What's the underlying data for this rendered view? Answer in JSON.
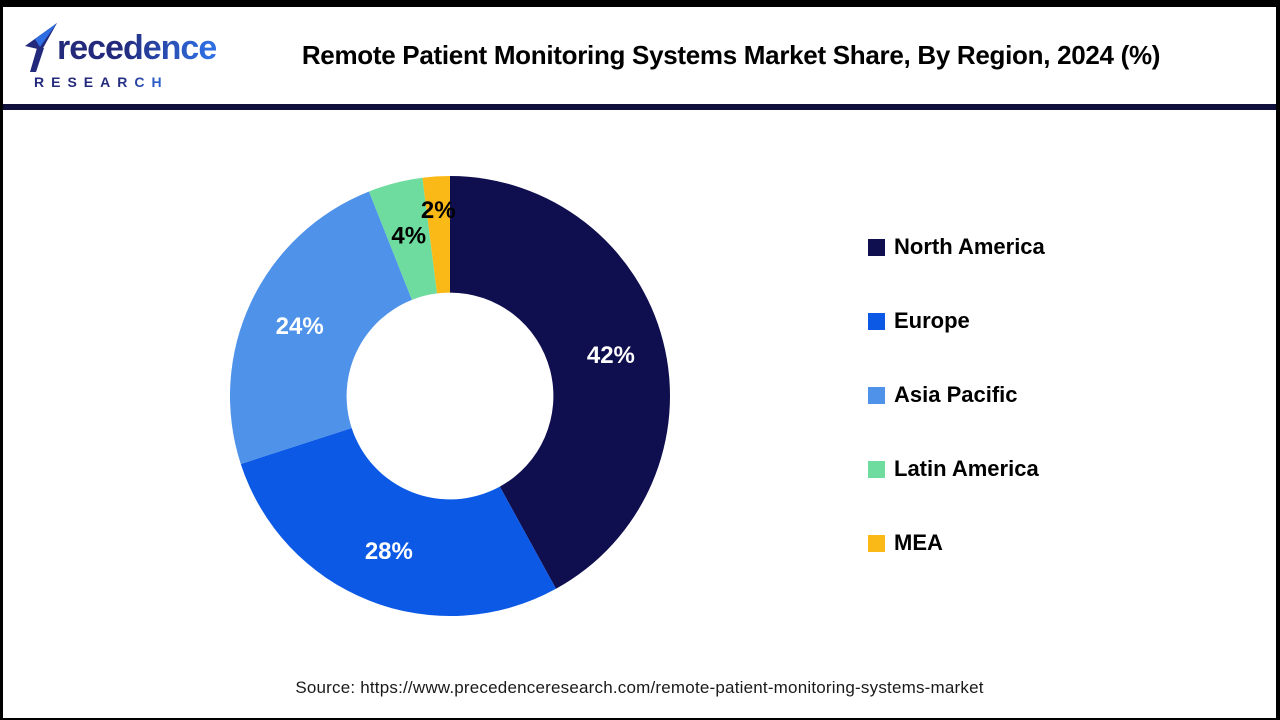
{
  "header": {
    "logo": {
      "wordmark": "Precedence",
      "sub": "RESEARCH",
      "brand_navy": "#232a7c",
      "brand_blue": "#2e6de2"
    },
    "title": "Remote Patient Monitoring Systems Market Share, By Region, 2024 (%)"
  },
  "chart_data": {
    "type": "pie",
    "subtype": "donut",
    "title": "Remote Patient Monitoring Systems Market Share, By Region, 2024 (%)",
    "categories": [
      "North America",
      "Europe",
      "Asia Pacific",
      "Latin America",
      "MEA"
    ],
    "values": [
      42,
      28,
      24,
      4,
      2
    ],
    "unit": "%",
    "data_labels": [
      "42%",
      "28%",
      "24%",
      "4%",
      "2%"
    ],
    "colors": [
      "#0f0e4e",
      "#0c59e6",
      "#4e92ea",
      "#6edc9e",
      "#fbb918"
    ],
    "data_label_colors": [
      "#ffffff",
      "#ffffff",
      "#ffffff",
      "#000000",
      "#000000"
    ],
    "start_angle_deg": 0,
    "direction": "clockwise",
    "inner_radius_ratio": 0.47,
    "legend_position": "right",
    "grid": false
  },
  "footer": {
    "source": "Source: https://www.precedenceresearch.com/remote-patient-monitoring-systems-market"
  },
  "frame": {
    "divider_color": "#10103c",
    "border_color": "#000000"
  }
}
